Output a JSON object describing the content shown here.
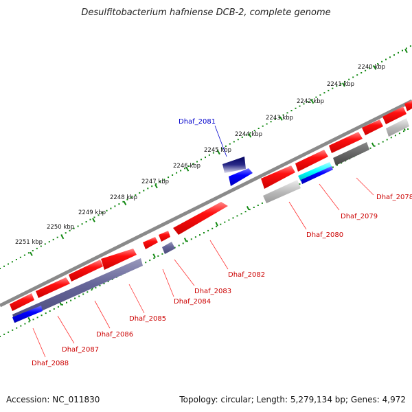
{
  "title": "Desulfitobacterium hafniense DCB-2, complete genome",
  "footer": {
    "accession": "Accession: NC_011830",
    "summary": "Topology: circular; Length: 5,279,134 bp; Genes: 4,972"
  },
  "scale_labels": [
    "2240 kbp",
    "2241 kbp",
    "2242 kbp",
    "2243 kbp",
    "2244 kbp",
    "2245 kbp",
    "2246 kbp",
    "2247 kbp",
    "2248 kbp",
    "2249 kbp",
    "2250 kbp",
    "2251 kbp"
  ],
  "colors": {
    "cds": "#ff0000",
    "cds_label": "#cc0000",
    "blue_gene": "#0000ff",
    "navy_gene": "#000080",
    "purple_gene": "#666699",
    "gray_gene": "#aaaaaa",
    "dark_gray_gene": "#666666",
    "cyan_gene": "#00ffff",
    "backbone": "#888888",
    "tick_green": "#118811",
    "highlight_label": "#0000cc"
  },
  "gene_labels": [
    "Dhaf_2078",
    "Dhaf_2079",
    "Dhaf_2080",
    "Dhaf_2081",
    "Dhaf_2082",
    "Dhaf_2083",
    "Dhaf_2084",
    "Dhaf_2085",
    "Dhaf_2086",
    "Dhaf_2087",
    "Dhaf_2088"
  ]
}
